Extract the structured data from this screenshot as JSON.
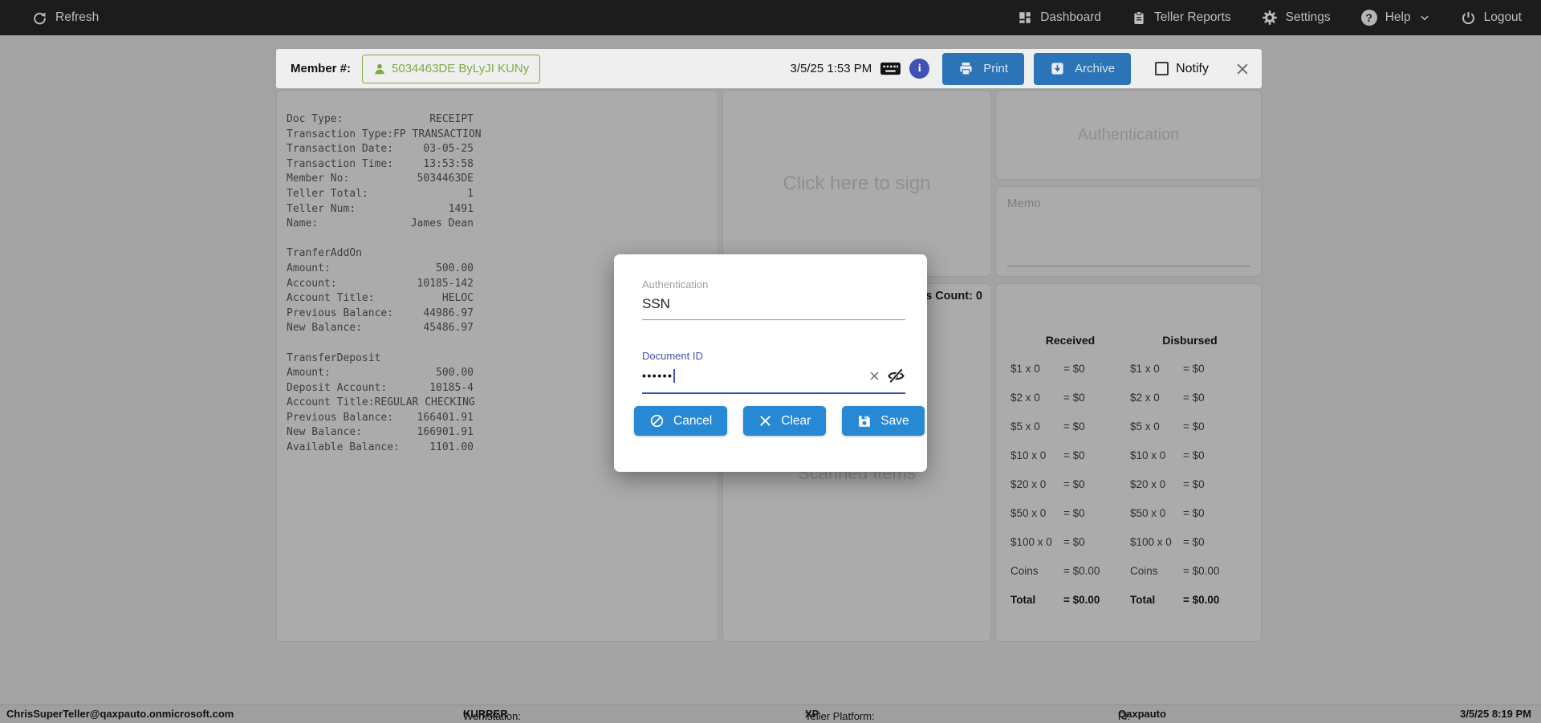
{
  "topbar": {
    "refresh_label": "Refresh",
    "dashboard_label": "Dashboard",
    "reports_label": "Teller Reports",
    "settings_label": "Settings",
    "help_label": "Help",
    "logout_label": "Logout"
  },
  "member_bar": {
    "member_label": "Member #:",
    "member_chip": "5034463DE ByLyJI KUNy",
    "datetime": "3/5/25 1:53 PM",
    "print_label": "Print",
    "archive_label": "Archive",
    "notify_label": "Notify"
  },
  "receipt": {
    "blocks": [
      {
        "title": "",
        "rows": [
          [
            "Doc Type:",
            "RECEIPT"
          ],
          [
            "Transaction Type:",
            "FP TRANSACTION"
          ],
          [
            "Transaction Date:",
            "03-05-25"
          ],
          [
            "Transaction Time:",
            "13:53:58"
          ],
          [
            "Member No:",
            "5034463DE"
          ],
          [
            "Teller Total:",
            "1"
          ],
          [
            "Teller Num:",
            "1491"
          ],
          [
            "Name:",
            "James Dean"
          ]
        ]
      },
      {
        "title": "TranferAddOn",
        "rows": [
          [
            "Amount:",
            "500.00"
          ],
          [
            "Account:",
            "10185-142"
          ],
          [
            "Account Title:",
            "HELOC"
          ],
          [
            "Previous Balance:",
            "44986.97"
          ],
          [
            "New Balance:",
            "45486.97"
          ]
        ]
      },
      {
        "title": "TransferDeposit",
        "rows": [
          [
            "Amount:",
            "500.00"
          ],
          [
            "Deposit Account:",
            "10185-4"
          ],
          [
            "Account Title:",
            "REGULAR CHECKING"
          ],
          [
            "Previous Balance:",
            "166401.91"
          ],
          [
            "New Balance:",
            "166901.91"
          ],
          [
            "Available Balance:",
            "1101.00"
          ]
        ]
      }
    ]
  },
  "signature": {
    "placeholder": "Click here to sign"
  },
  "scanned": {
    "count_label": "Items Count: 0",
    "title": "Scanned Items"
  },
  "auth_panel": {
    "title": "Authentication"
  },
  "memo_panel": {
    "label": "Memo"
  },
  "cash": {
    "received_header": "Received",
    "disbursed_header": "Disbursed",
    "rows": [
      {
        "label": "$1 x 0",
        "received": "= $0",
        "disbursed": "= $0",
        "bold": false
      },
      {
        "label": "$2 x 0",
        "received": "= $0",
        "disbursed": "= $0",
        "bold": false
      },
      {
        "label": "$5 x 0",
        "received": "= $0",
        "disbursed": "= $0",
        "bold": false
      },
      {
        "label": "$10 x 0",
        "received": "= $0",
        "disbursed": "= $0",
        "bold": false
      },
      {
        "label": "$20 x 0",
        "received": "= $0",
        "disbursed": "= $0",
        "bold": false
      },
      {
        "label": "$50 x 0",
        "received": "= $0",
        "disbursed": "= $0",
        "bold": false
      },
      {
        "label": "$100 x 0",
        "received": "= $0",
        "disbursed": "= $0",
        "bold": false
      },
      {
        "label": "Coins",
        "received": "= $0.00",
        "disbursed": "= $0.00",
        "bold": false
      },
      {
        "label": "Total",
        "received": "= $0.00",
        "disbursed": "= $0.00",
        "bold": true
      }
    ]
  },
  "modal": {
    "auth_label": "Authentication",
    "auth_value": "SSN",
    "docid_label": "Document ID",
    "docid_masked": "••••••",
    "cancel_label": "Cancel",
    "clear_label": "Clear",
    "save_label": "Save"
  },
  "statusbar": {
    "email": "ChrisSuperTeller@qaxpauto.onmicrosoft.com",
    "workstation_label": "Workstation:",
    "workstation": "KURRER",
    "platform_label": "Teller Platform:",
    "platform": "XP",
    "fi_label": "FI:",
    "fi": "Qaxpauto",
    "datetime": "3/5/25 8:19 PM"
  },
  "colors": {
    "bar_button_blue": "#2a74b7",
    "modal_button_blue": "#2788d4",
    "chip_green": "#7cab40",
    "accent_indigo": "#3f51b5",
    "topbar_bg": "#1c1c1c"
  }
}
